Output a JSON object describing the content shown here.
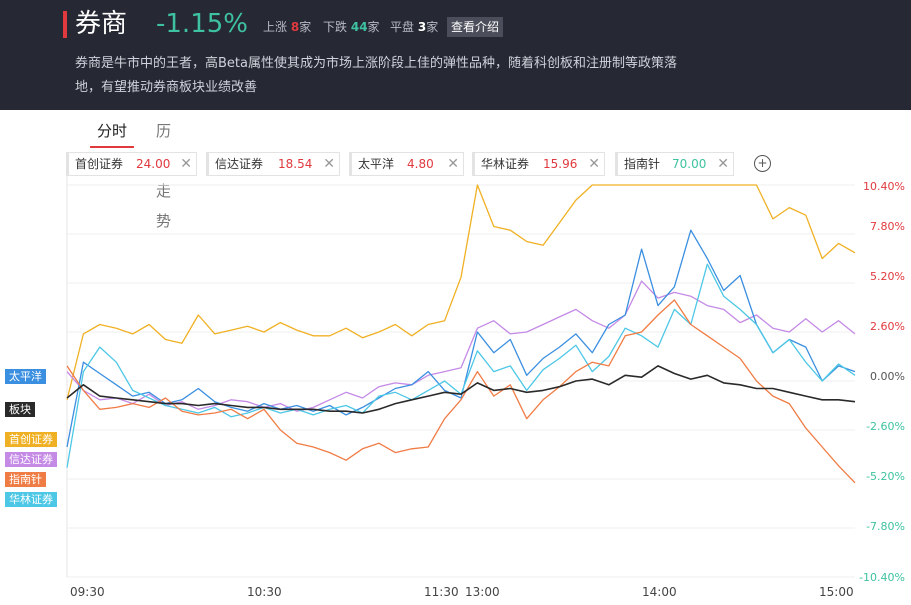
{
  "header": {
    "title": "券商",
    "change_pct": "-1.15%",
    "up_label": "上涨",
    "up_count": "8",
    "down_label": "下跌",
    "down_count": "44",
    "flat_label": "平盘",
    "flat_count": "3",
    "unit": "家",
    "intro_button": "查看介绍",
    "description": "券商是牛市中的王者，高Beta属性使其成为市场上涨阶段上佳的弹性品种，随着科创板和注册制等政策落地，有望推动券商板块业绩改善",
    "accent_color": "#e0393e",
    "down_color": "#3ec2a0"
  },
  "tabs": [
    {
      "label": "分时",
      "active": true
    },
    {
      "label": "历史走势",
      "active": false
    }
  ],
  "stock_chips": [
    {
      "name": "首创证券",
      "price": "24.00",
      "color": "#f0b023"
    },
    {
      "name": "信达证券",
      "price": "18.54",
      "color": "#c48ae6"
    },
    {
      "name": "太平洋",
      "price": "4.80",
      "color": "#3b8fe0"
    },
    {
      "name": "华林证券",
      "price": "15.96",
      "color": "#4dc7e6"
    },
    {
      "name": "指南针",
      "price": "70.00",
      "color": "#f07c45"
    }
  ],
  "chart_data": {
    "type": "line",
    "x": [
      "09:30",
      "09:35",
      "09:40",
      "09:45",
      "09:50",
      "09:55",
      "10:00",
      "10:05",
      "10:10",
      "10:15",
      "10:20",
      "10:25",
      "10:30",
      "10:35",
      "10:40",
      "10:45",
      "10:50",
      "10:55",
      "11:00",
      "11:05",
      "11:10",
      "11:15",
      "11:20",
      "11:25",
      "11:30",
      "13:05",
      "13:10",
      "13:15",
      "13:20",
      "13:25",
      "13:30",
      "13:35",
      "13:40",
      "13:45",
      "13:50",
      "13:55",
      "14:00",
      "14:05",
      "14:10",
      "14:15",
      "14:20",
      "14:25",
      "14:30",
      "14:35",
      "14:40",
      "14:45",
      "14:50",
      "14:55",
      "15:00"
    ],
    "xticks": [
      "09:30",
      "10:30",
      "11:30",
      "13:00",
      "14:00",
      "15:00"
    ],
    "yticks": [
      "10.40%",
      "7.80%",
      "5.20%",
      "2.60%",
      "0.00%",
      "-2.60%",
      "-5.20%",
      "-7.80%",
      "-10.40%"
    ],
    "ylim": [
      -10.4,
      10.4
    ],
    "series": [
      {
        "name": "首创证券",
        "color": "#f0b023",
        "values": [
          -1.0,
          2.5,
          3.0,
          2.8,
          2.5,
          3.0,
          2.2,
          2.0,
          3.5,
          2.5,
          2.7,
          2.9,
          2.6,
          3.1,
          2.7,
          2.4,
          2.4,
          2.8,
          2.3,
          2.6,
          3.0,
          2.4,
          3.0,
          3.2,
          5.5,
          10.4,
          8.2,
          8.0,
          7.4,
          7.2,
          8.4,
          9.6,
          10.4,
          10.4,
          10.4,
          10.4,
          10.4,
          10.4,
          10.4,
          10.4,
          10.4,
          10.4,
          10.4,
          8.6,
          9.2,
          8.8,
          6.5,
          7.3,
          6.8
        ]
      },
      {
        "name": "信达证券",
        "color": "#c48ae6",
        "values": [
          0.5,
          -0.5,
          -1.0,
          -0.9,
          -1.2,
          -0.7,
          -1.3,
          -1.1,
          -1.5,
          -1.3,
          -1.0,
          -1.1,
          -1.4,
          -1.2,
          -1.6,
          -1.4,
          -1.0,
          -0.6,
          -0.9,
          -0.3,
          -0.1,
          -0.2,
          0.3,
          0.5,
          0.7,
          2.8,
          3.2,
          2.5,
          2.6,
          3.0,
          3.4,
          3.8,
          3.2,
          2.8,
          3.5,
          5.3,
          4.4,
          4.7,
          4.5,
          4.0,
          3.8,
          3.1,
          3.5,
          2.8,
          2.6,
          3.3,
          2.6,
          3.2,
          2.5
        ]
      },
      {
        "name": "太平洋",
        "color": "#3b8fe0",
        "values": [
          -3.5,
          1.0,
          0.4,
          -0.2,
          -0.8,
          -0.6,
          -1.2,
          -1.0,
          -0.4,
          -1.1,
          -1.4,
          -1.6,
          -1.2,
          -1.5,
          -1.3,
          -1.6,
          -1.3,
          -1.8,
          -1.4,
          -0.9,
          -0.4,
          -0.2,
          0.5,
          -0.5,
          -0.9,
          2.6,
          1.5,
          2.2,
          0.3,
          1.2,
          1.8,
          2.5,
          1.5,
          3.0,
          3.5,
          7.0,
          4.0,
          5.0,
          8.0,
          6.5,
          4.8,
          5.6,
          3.0,
          1.5,
          2.2,
          1.8,
          0.0,
          0.8,
          0.5
        ]
      },
      {
        "name": "华林证券",
        "color": "#4dc7e6",
        "values": [
          -4.6,
          0.5,
          1.8,
          1.0,
          -0.5,
          -0.9,
          -1.3,
          -1.5,
          -1.7,
          -1.4,
          -1.9,
          -1.7,
          -1.4,
          -1.7,
          -1.5,
          -1.8,
          -1.5,
          -1.3,
          -1.7,
          -0.8,
          -0.6,
          -1.0,
          -0.5,
          0.0,
          -0.7,
          1.6,
          0.5,
          0.8,
          -0.5,
          0.6,
          1.2,
          1.9,
          0.5,
          1.3,
          2.8,
          2.4,
          1.8,
          3.8,
          3.0,
          6.2,
          4.5,
          3.8,
          3.0,
          1.5,
          2.2,
          1.0,
          0.0,
          0.9,
          0.3
        ]
      },
      {
        "name": "指南针",
        "color": "#f07c45",
        "values": [
          0.8,
          -0.5,
          -1.5,
          -1.4,
          -1.2,
          -1.4,
          -0.9,
          -1.6,
          -1.8,
          -1.7,
          -1.5,
          -2.0,
          -1.5,
          -2.6,
          -3.3,
          -3.5,
          -3.8,
          -4.2,
          -3.6,
          -3.3,
          -3.8,
          -3.6,
          -3.5,
          -2.0,
          -1.0,
          0.5,
          -0.8,
          -0.2,
          -2.0,
          -1.0,
          -0.3,
          0.5,
          1.0,
          0.8,
          2.4,
          2.6,
          3.5,
          4.3,
          3.0,
          2.4,
          1.8,
          1.2,
          0.0,
          -0.8,
          -1.2,
          -2.5,
          -3.5,
          -4.5,
          -5.4
        ]
      },
      {
        "name": "板块",
        "color": "#2a2a2a",
        "values": [
          -0.9,
          -0.2,
          -0.8,
          -0.9,
          -1.0,
          -1.1,
          -1.2,
          -1.2,
          -1.3,
          -1.2,
          -1.3,
          -1.4,
          -1.4,
          -1.5,
          -1.5,
          -1.5,
          -1.6,
          -1.6,
          -1.7,
          -1.5,
          -1.2,
          -1.0,
          -0.8,
          -0.6,
          -0.7,
          -0.1,
          -0.5,
          -0.4,
          -0.6,
          -0.5,
          -0.3,
          0.0,
          0.1,
          -0.2,
          0.3,
          0.2,
          0.8,
          0.4,
          0.1,
          0.3,
          -0.1,
          -0.2,
          -0.4,
          -0.4,
          -0.6,
          -0.8,
          -1.0,
          -1.0,
          -1.1
        ]
      }
    ]
  },
  "side_labels": [
    {
      "name": "太平洋",
      "color": "#3b8fe0"
    },
    {
      "name": "板块",
      "color": "#2a2a2a"
    },
    {
      "name": "首创证券",
      "color": "#f0b023"
    },
    {
      "name": "信达证券",
      "color": "#c48ae6"
    },
    {
      "name": "指南针",
      "color": "#f07c45"
    },
    {
      "name": "华林证券",
      "color": "#4dc7e6"
    }
  ],
  "colors": {
    "positive": "#e0393e",
    "negative": "#3ec2a0",
    "zero": "#555555"
  }
}
